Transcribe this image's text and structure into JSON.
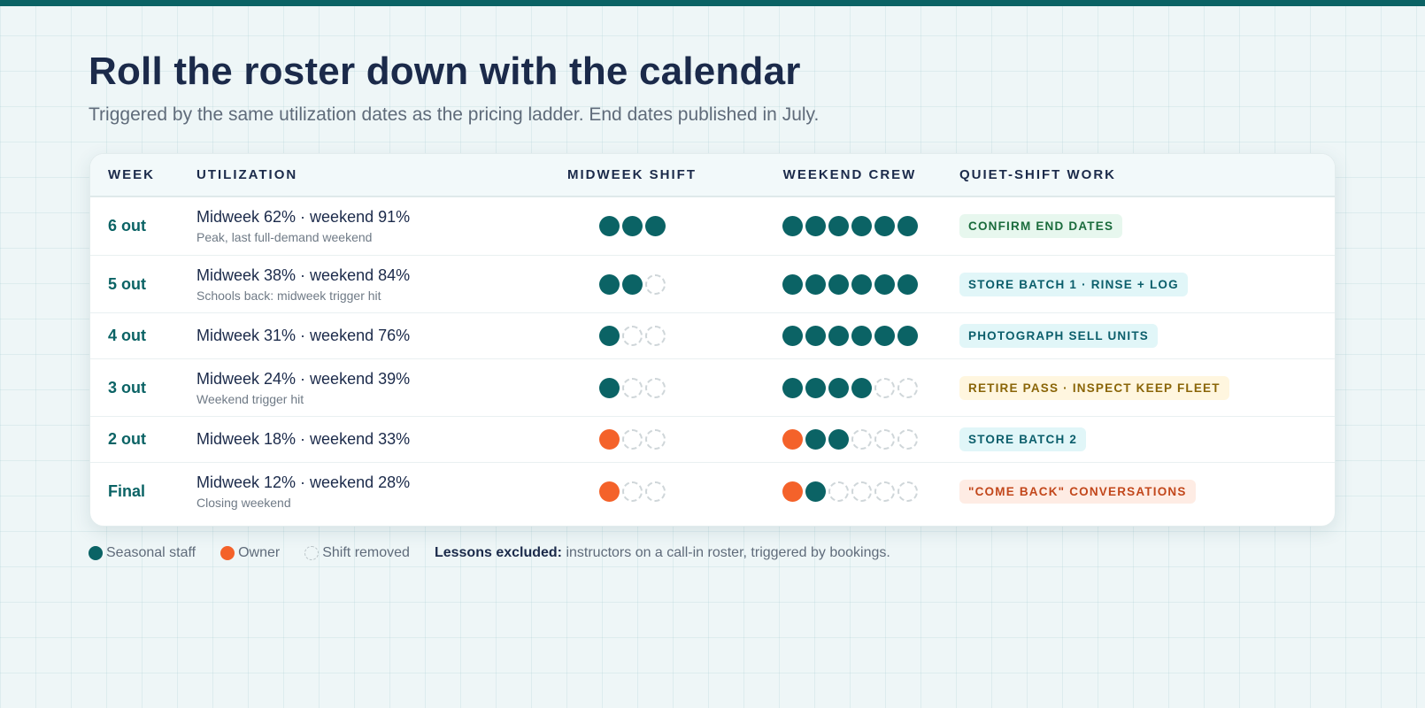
{
  "header": {
    "title": "Roll the roster down with the calendar",
    "subtitle": "Triggered by the same utilization dates as the pricing ladder. End dates published in July."
  },
  "table": {
    "columns": [
      "WEEK",
      "UTILIZATION",
      "MIDWEEK SHIFT",
      "WEEKEND CREW",
      "QUIET-SHIFT WORK"
    ],
    "rows": [
      {
        "week": "6 out",
        "utilization": "Midweek 62% · weekend 91%",
        "note": "Peak, last full-demand weekend",
        "midweek": [
          "staff",
          "staff",
          "staff"
        ],
        "weekend": [
          "staff",
          "staff",
          "staff",
          "staff",
          "staff",
          "staff"
        ],
        "task": "CONFIRM END DATES",
        "task_color": "green"
      },
      {
        "week": "5 out",
        "utilization": "Midweek 38% · weekend 84%",
        "note": "Schools back: midweek trigger hit",
        "midweek": [
          "staff",
          "staff",
          "removed"
        ],
        "weekend": [
          "staff",
          "staff",
          "staff",
          "staff",
          "staff",
          "staff"
        ],
        "task": "STORE BATCH 1 · RINSE + LOG",
        "task_color": "cyan"
      },
      {
        "week": "4 out",
        "utilization": "Midweek 31% · weekend 76%",
        "note": "",
        "midweek": [
          "staff",
          "removed",
          "removed"
        ],
        "weekend": [
          "staff",
          "staff",
          "staff",
          "staff",
          "staff",
          "staff"
        ],
        "task": "PHOTOGRAPH SELL UNITS",
        "task_color": "cyan"
      },
      {
        "week": "3 out",
        "utilization": "Midweek 24% · weekend 39%",
        "note": "Weekend trigger hit",
        "midweek": [
          "staff",
          "removed",
          "removed"
        ],
        "weekend": [
          "staff",
          "staff",
          "staff",
          "staff",
          "removed",
          "removed"
        ],
        "task": "RETIRE PASS · INSPECT KEEP FLEET",
        "task_color": "yellow"
      },
      {
        "week": "2 out",
        "utilization": "Midweek 18% · weekend 33%",
        "note": "",
        "midweek": [
          "owner",
          "removed",
          "removed"
        ],
        "weekend": [
          "owner",
          "staff",
          "staff",
          "removed",
          "removed",
          "removed"
        ],
        "task": "STORE BATCH 2",
        "task_color": "cyan"
      },
      {
        "week": "Final",
        "utilization": "Midweek 12% · weekend 28%",
        "note": "Closing weekend",
        "midweek": [
          "owner",
          "removed",
          "removed"
        ],
        "weekend": [
          "owner",
          "staff",
          "removed",
          "removed",
          "removed",
          "removed"
        ],
        "task": "\"COME BACK\" CONVERSATIONS",
        "task_color": "orange"
      }
    ]
  },
  "legend": {
    "staff": "Seasonal staff",
    "owner": "Owner",
    "removed": "Shift removed",
    "note_label": "Lessons excluded:",
    "note_text": " instructors on a call-in roster, triggered by bookings."
  },
  "colors": {
    "accent": "#0b6365",
    "owner": "#f4622a",
    "title": "#1b2a4a"
  }
}
